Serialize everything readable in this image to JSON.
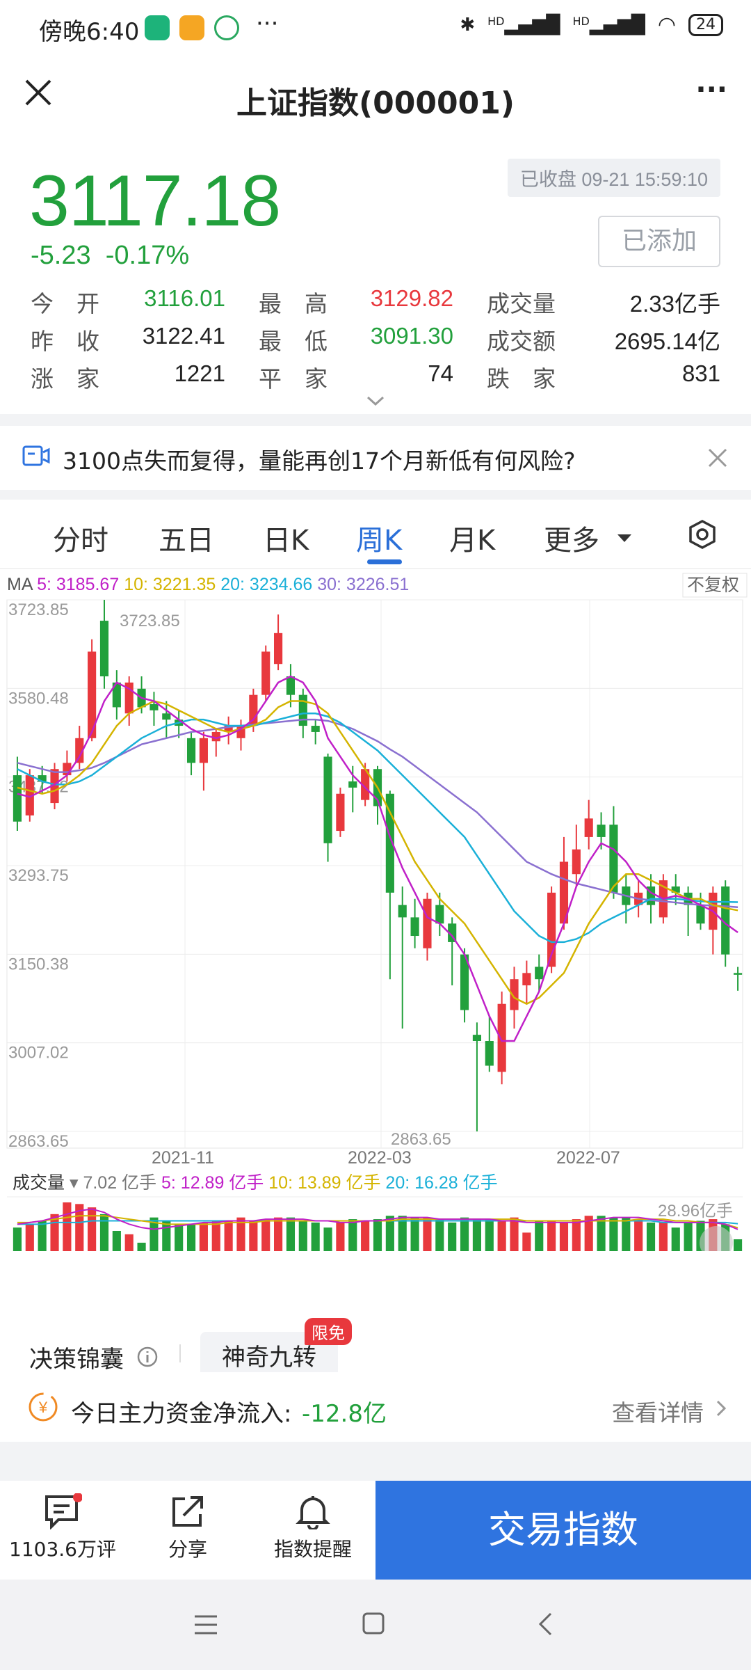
{
  "status_bar": {
    "time": "傍晚6:40",
    "more": "···",
    "battery": "24",
    "signal1": "HD",
    "signal2": "HD"
  },
  "nav": {
    "title": "上证指数(000001)",
    "more": "···"
  },
  "quote": {
    "price": "3117.18",
    "change": "-5.23",
    "change_pct": "-0.17%",
    "closed_label": "已收盘 09-21 15:59:10",
    "add_button": "已添加",
    "stats": [
      [
        {
          "label": "今　开",
          "value": "3116.01",
          "color": "green"
        },
        {
          "label": "最　高",
          "value": "3129.82",
          "color": "red"
        },
        {
          "label": "成交量",
          "value": "2.33亿手",
          "color": "black"
        }
      ],
      [
        {
          "label": "昨　收",
          "value": "3122.41",
          "color": "black"
        },
        {
          "label": "最　低",
          "value": "3091.30",
          "color": "green"
        },
        {
          "label": "成交额",
          "value": "2695.14亿",
          "color": "black"
        }
      ],
      [
        {
          "label": "涨　家",
          "value": "1221",
          "color": "black"
        },
        {
          "label": "平　家",
          "value": "74",
          "color": "black"
        },
        {
          "label": "跌　家",
          "value": "831",
          "color": "black"
        }
      ]
    ]
  },
  "news": {
    "text": "3100点失而复得，量能再创17个月新低有何风险?"
  },
  "tabs": {
    "items": [
      "分时",
      "五日",
      "日K",
      "周K",
      "月K",
      "更多"
    ],
    "active": "周K"
  },
  "ma_legend": {
    "ma": "MA",
    "ma5": "5: 3185.67",
    "ma10": "10: 3221.35",
    "ma20": "20: 3234.66",
    "ma30": "30: 3226.51",
    "adjust": "不复权"
  },
  "volume_legend": {
    "label": "成交量",
    "total": "7.02 亿手",
    "v5": "5: 12.89 亿手",
    "v10": "10: 13.89 亿手",
    "v20": "20: 16.28 亿手",
    "max": "28.96亿手"
  },
  "colors": {
    "up": "#e8383d",
    "down": "#22a03c",
    "ma5": "#c020c8",
    "ma10": "#d4b400",
    "ma20": "#1ab0d8",
    "ma30": "#8a70d0",
    "accent": "#2f74e0"
  },
  "chart_data": {
    "type": "candlestick",
    "title": "",
    "y_ticks": [
      3723.85,
      3580.48,
      3437.12,
      3293.75,
      3150.38,
      3007.02,
      2863.65
    ],
    "y_tick_labels": [
      "3723.85",
      "3580.48",
      "3437.12",
      "3293.75",
      "3150.38",
      "3007.02",
      "2863.65"
    ],
    "x_tick_labels": [
      "2021-11",
      "2022-03",
      "2022-07"
    ],
    "max_label": "3723.85",
    "min_label": "2863.65",
    "ylim": [
      2863.65,
      3723.85
    ],
    "candles": [
      {
        "o": 3440,
        "c": 3365,
        "h": 3470,
        "l": 3350
      },
      {
        "o": 3375,
        "c": 3440,
        "h": 3450,
        "l": 3365
      },
      {
        "o": 3440,
        "c": 3430,
        "h": 3455,
        "l": 3410
      },
      {
        "o": 3395,
        "c": 3450,
        "h": 3460,
        "l": 3385
      },
      {
        "o": 3440,
        "c": 3460,
        "h": 3480,
        "l": 3430
      },
      {
        "o": 3460,
        "c": 3500,
        "h": 3520,
        "l": 3450
      },
      {
        "o": 3500,
        "c": 3640,
        "h": 3660,
        "l": 3495
      },
      {
        "o": 3690,
        "c": 3600,
        "h": 3723.85,
        "l": 3580
      },
      {
        "o": 3590,
        "c": 3550,
        "h": 3610,
        "l": 3530
      },
      {
        "o": 3540,
        "c": 3590,
        "h": 3600,
        "l": 3520
      },
      {
        "o": 3580,
        "c": 3550,
        "h": 3600,
        "l": 3540
      },
      {
        "o": 3555,
        "c": 3545,
        "h": 3575,
        "l": 3520
      },
      {
        "o": 3540,
        "c": 3530,
        "h": 3560,
        "l": 3500
      },
      {
        "o": 3530,
        "c": 3520,
        "h": 3545,
        "l": 3500
      },
      {
        "o": 3500,
        "c": 3460,
        "h": 3510,
        "l": 3440
      },
      {
        "o": 3460,
        "c": 3500,
        "h": 3510,
        "l": 3415
      },
      {
        "o": 3495,
        "c": 3510,
        "h": 3515,
        "l": 3470
      },
      {
        "o": 3510,
        "c": 3520,
        "h": 3535,
        "l": 3490
      },
      {
        "o": 3500,
        "c": 3520,
        "h": 3530,
        "l": 3480
      },
      {
        "o": 3520,
        "c": 3570,
        "h": 3580,
        "l": 3510
      },
      {
        "o": 3570,
        "c": 3640,
        "h": 3650,
        "l": 3560
      },
      {
        "o": 3620,
        "c": 3670,
        "h": 3700,
        "l": 3610
      },
      {
        "o": 3600,
        "c": 3570,
        "h": 3620,
        "l": 3550
      },
      {
        "o": 3570,
        "c": 3520,
        "h": 3580,
        "l": 3500
      },
      {
        "o": 3520,
        "c": 3510,
        "h": 3530,
        "l": 3490
      },
      {
        "o": 3470,
        "c": 3330,
        "h": 3475,
        "l": 3300
      },
      {
        "o": 3350,
        "c": 3410,
        "h": 3420,
        "l": 3340
      },
      {
        "o": 3430,
        "c": 3420,
        "h": 3455,
        "l": 3380
      },
      {
        "o": 3400,
        "c": 3450,
        "h": 3460,
        "l": 3390
      },
      {
        "o": 3450,
        "c": 3390,
        "h": 3455,
        "l": 3360
      },
      {
        "o": 3410,
        "c": 3250,
        "h": 3415,
        "l": 3110
      },
      {
        "o": 3230,
        "c": 3210,
        "h": 3260,
        "l": 3030
      },
      {
        "o": 3210,
        "c": 3180,
        "h": 3240,
        "l": 3160
      },
      {
        "o": 3160,
        "c": 3240,
        "h": 3250,
        "l": 3140
      },
      {
        "o": 3230,
        "c": 3200,
        "h": 3250,
        "l": 3180
      },
      {
        "o": 3200,
        "c": 3170,
        "h": 3210,
        "l": 3100
      },
      {
        "o": 3150,
        "c": 3060,
        "h": 3160,
        "l": 3040
      },
      {
        "o": 3020,
        "c": 3010,
        "h": 3040,
        "l": 2863.65
      },
      {
        "o": 3010,
        "c": 2970,
        "h": 3050,
        "l": 2960
      },
      {
        "o": 2960,
        "c": 3070,
        "h": 3090,
        "l": 2940
      },
      {
        "o": 3060,
        "c": 3110,
        "h": 3130,
        "l": 3030
      },
      {
        "o": 3100,
        "c": 3120,
        "h": 3140,
        "l": 3070
      },
      {
        "o": 3130,
        "c": 3110,
        "h": 3150,
        "l": 3090
      },
      {
        "o": 3130,
        "c": 3250,
        "h": 3260,
        "l": 3120
      },
      {
        "o": 3200,
        "c": 3300,
        "h": 3340,
        "l": 3190
      },
      {
        "o": 3280,
        "c": 3320,
        "h": 3360,
        "l": 3260
      },
      {
        "o": 3340,
        "c": 3370,
        "h": 3400,
        "l": 3320
      },
      {
        "o": 3360,
        "c": 3340,
        "h": 3380,
        "l": 3320
      },
      {
        "o": 3360,
        "c": 3250,
        "h": 3390,
        "l": 3240
      },
      {
        "o": 3260,
        "c": 3230,
        "h": 3280,
        "l": 3200
      },
      {
        "o": 3230,
        "c": 3250,
        "h": 3270,
        "l": 3210
      },
      {
        "o": 3260,
        "c": 3230,
        "h": 3280,
        "l": 3200
      },
      {
        "o": 3210,
        "c": 3270,
        "h": 3280,
        "l": 3200
      },
      {
        "o": 3260,
        "c": 3250,
        "h": 3280,
        "l": 3230
      },
      {
        "o": 3250,
        "c": 3230,
        "h": 3260,
        "l": 3180
      },
      {
        "o": 3230,
        "c": 3200,
        "h": 3250,
        "l": 3190
      },
      {
        "o": 3190,
        "c": 3250,
        "h": 3260,
        "l": 3150
      },
      {
        "o": 3260,
        "c": 3150,
        "h": 3270,
        "l": 3130
      },
      {
        "o": 3120,
        "c": 3117.18,
        "h": 3129.82,
        "l": 3091.3
      }
    ],
    "ma5": [
      3410,
      3405,
      3415,
      3425,
      3440,
      3470,
      3510,
      3560,
      3590,
      3580,
      3565,
      3560,
      3545,
      3530,
      3515,
      3505,
      3500,
      3505,
      3515,
      3530,
      3560,
      3590,
      3600,
      3590,
      3560,
      3500,
      3470,
      3440,
      3420,
      3400,
      3340,
      3290,
      3250,
      3210,
      3200,
      3180,
      3150,
      3100,
      3050,
      3010,
      3010,
      3050,
      3090,
      3150,
      3200,
      3260,
      3300,
      3330,
      3320,
      3300,
      3270,
      3250,
      3240,
      3245,
      3240,
      3230,
      3220,
      3200,
      3185.67
    ],
    "ma10": [
      3420,
      3415,
      3410,
      3415,
      3425,
      3440,
      3460,
      3490,
      3520,
      3540,
      3550,
      3560,
      3555,
      3545,
      3535,
      3525,
      3515,
      3510,
      3515,
      3520,
      3530,
      3550,
      3560,
      3560,
      3555,
      3540,
      3510,
      3480,
      3450,
      3420,
      3380,
      3340,
      3300,
      3270,
      3240,
      3220,
      3200,
      3170,
      3140,
      3110,
      3080,
      3070,
      3080,
      3100,
      3120,
      3160,
      3200,
      3230,
      3260,
      3280,
      3280,
      3270,
      3260,
      3250,
      3240,
      3240,
      3230,
      3225,
      3221.35
    ],
    "ma20": [
      3450,
      3440,
      3430,
      3425,
      3425,
      3430,
      3440,
      3455,
      3470,
      3485,
      3500,
      3510,
      3520,
      3525,
      3530,
      3530,
      3525,
      3520,
      3520,
      3520,
      3525,
      3530,
      3535,
      3540,
      3540,
      3535,
      3525,
      3510,
      3495,
      3480,
      3460,
      3440,
      3420,
      3400,
      3380,
      3360,
      3340,
      3310,
      3280,
      3250,
      3220,
      3200,
      3180,
      3170,
      3170,
      3175,
      3185,
      3200,
      3210,
      3220,
      3230,
      3240,
      3240,
      3240,
      3238,
      3236,
      3235,
      3235,
      3234.66
    ],
    "ma30": [
      3460,
      3455,
      3450,
      3445,
      3445,
      3448,
      3452,
      3460,
      3470,
      3480,
      3490,
      3495,
      3500,
      3505,
      3510,
      3512,
      3515,
      3518,
      3520,
      3522,
      3524,
      3526,
      3528,
      3530,
      3530,
      3528,
      3522,
      3515,
      3505,
      3495,
      3482,
      3470,
      3455,
      3440,
      3425,
      3410,
      3395,
      3380,
      3360,
      3340,
      3320,
      3300,
      3290,
      3280,
      3272,
      3265,
      3260,
      3255,
      3250,
      3245,
      3240,
      3238,
      3236,
      3234,
      3232,
      3230,
      3229,
      3228,
      3226.51
    ],
    "volume": {
      "values": [
        14,
        16,
        18,
        22,
        28.96,
        28,
        26,
        22,
        12,
        10,
        5,
        20,
        18,
        16,
        16,
        17,
        18,
        18,
        20,
        18,
        19,
        20,
        20,
        18,
        17,
        14,
        17,
        19,
        18,
        19,
        21,
        21,
        20,
        20,
        19,
        17,
        20,
        19,
        19,
        18,
        20,
        11,
        18,
        18,
        17,
        19,
        21,
        21,
        20,
        20,
        19,
        17,
        17,
        14,
        17,
        18,
        19,
        16,
        7.02
      ],
      "ylim": [
        0,
        28.96
      ],
      "ma5": [
        16,
        17,
        18,
        20,
        22,
        24,
        25,
        23,
        19,
        16,
        14,
        13,
        14,
        15,
        16,
        17,
        17,
        18,
        18,
        18,
        19,
        19,
        19,
        19,
        18,
        18,
        17,
        17,
        18,
        18,
        19,
        20,
        20,
        20,
        19,
        19,
        19,
        19,
        19,
        18,
        18,
        17,
        17,
        17,
        17,
        17,
        18,
        19,
        20,
        20,
        20,
        19,
        18,
        17,
        17,
        17,
        17,
        16,
        12.89
      ],
      "ma10": [
        17,
        17,
        18,
        19,
        20,
        21,
        21,
        21,
        20,
        19,
        18,
        17,
        16,
        16,
        16,
        16,
        16,
        17,
        17,
        17,
        18,
        18,
        18,
        18,
        18,
        18,
        18,
        18,
        18,
        18,
        18,
        19,
        19,
        19,
        19,
        19,
        19,
        19,
        19,
        19,
        19,
        18,
        18,
        18,
        18,
        18,
        18,
        18,
        18,
        18,
        19,
        19,
        19,
        18,
        18,
        17,
        17,
        16,
        13.89
      ],
      "ma20": [
        16,
        16,
        16,
        17,
        17,
        17,
        18,
        18,
        18,
        18,
        18,
        18,
        18,
        18,
        18,
        18,
        18,
        18,
        18,
        18,
        18,
        18,
        18,
        18,
        18,
        18,
        18,
        18,
        18,
        18,
        18,
        18,
        18,
        18,
        18,
        18,
        18,
        18,
        18,
        18,
        18,
        18,
        18,
        18,
        18,
        18,
        18,
        18,
        18,
        18,
        18,
        18,
        17,
        17,
        17,
        17,
        17,
        17,
        16.28
      ]
    }
  },
  "capsule": {
    "item1": "决策锦囊",
    "item2": "神奇九转",
    "badge": "限免"
  },
  "flow": {
    "label": "今日主力资金净流入:",
    "value": "-12.8亿",
    "details": "查看详情"
  },
  "bottom": {
    "comments": "1103.6万评",
    "share": "分享",
    "alert": "指数提醒",
    "trade": "交易指数"
  }
}
